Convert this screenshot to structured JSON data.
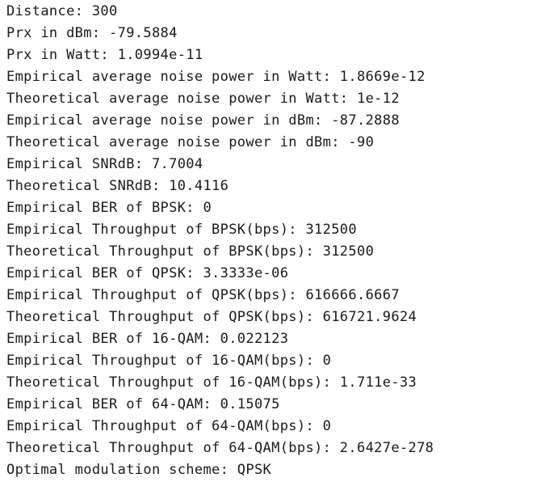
{
  "output_lines": [
    "Distance: 300",
    "Prx in dBm: -79.5884",
    "Prx in Watt: 1.0994e-11",
    "Empirical average noise power in Watt: 1.8669e-12",
    "Theoretical average noise power in Watt: 1e-12",
    "Empirical average noise power in dBm: -87.2888",
    "Theoretical average noise power in dBm: -90",
    "Empirical SNRdB: 7.7004",
    "Theoretical SNRdB: 10.4116",
    "Empirical BER of BPSK: 0",
    "Empirical Throughput of BPSK(bps): 312500",
    "Theoretical Throughput of BPSK(bps): 312500",
    "Empirical BER of QPSK: 3.3333e-06",
    "Empirical Throughput of QPSK(bps): 616666.6667",
    "Theoretical Throughput of QPSK(bps): 616721.9624",
    "Empirical BER of 16-QAM: 0.022123",
    "Empirical Throughput of 16-QAM(bps): 0",
    "Theoretical Throughput of 16-QAM(bps): 1.711e-33",
    "Empirical BER of 64-QAM: 0.15075",
    "Empirical Throughput of 64-QAM(bps): 0",
    "Theoretical Throughput of 64-QAM(bps): 2.6427e-278",
    "Optimal modulation scheme: QPSK"
  ]
}
